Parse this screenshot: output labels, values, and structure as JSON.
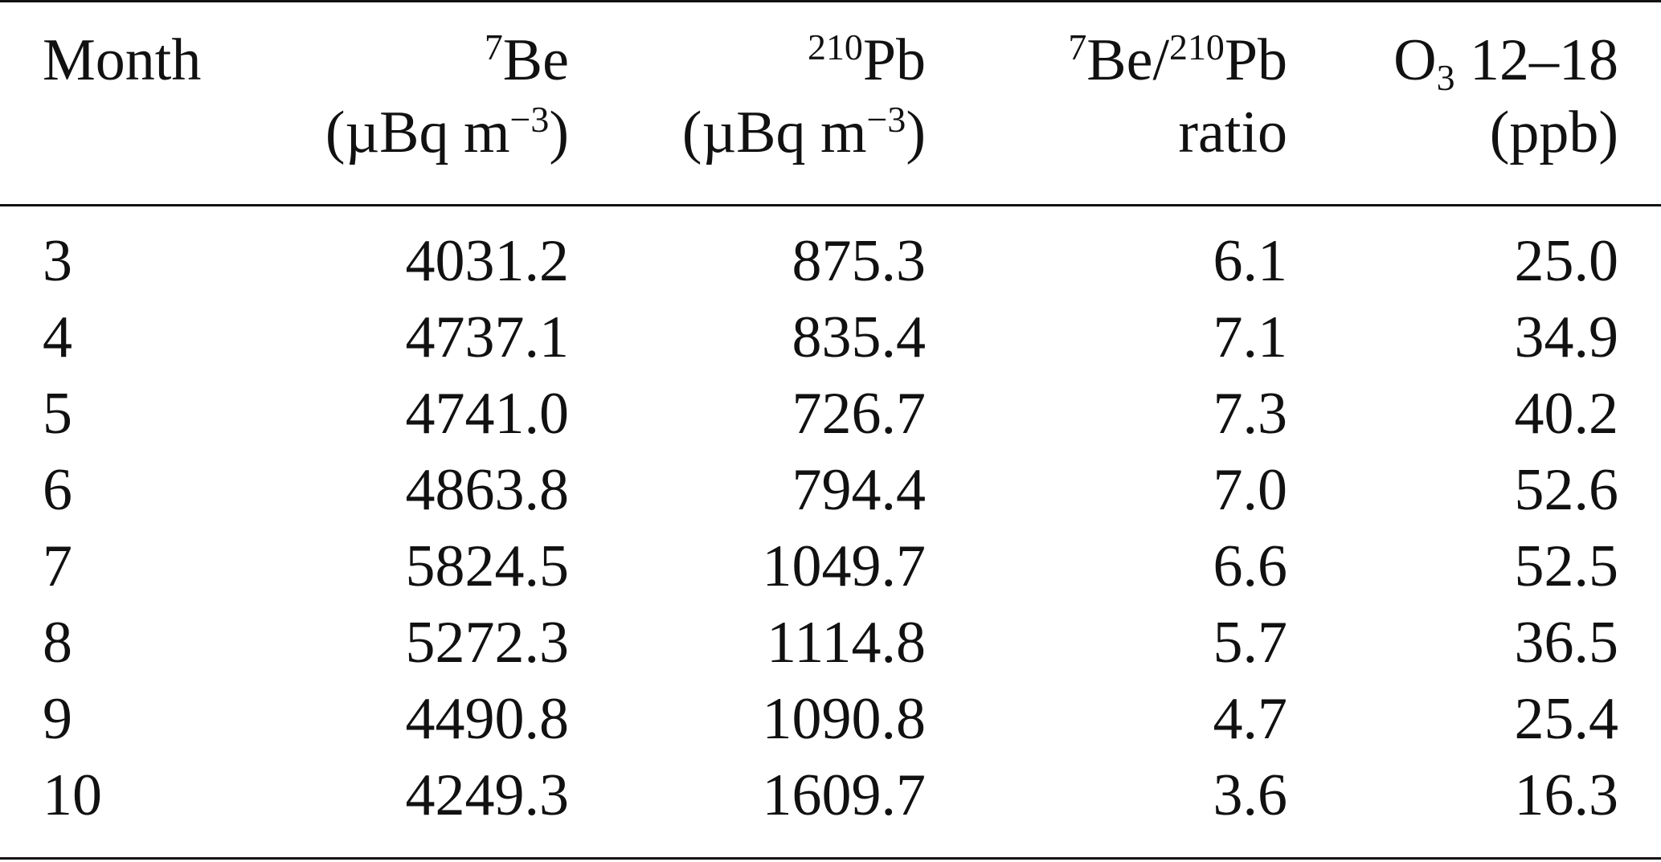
{
  "table": {
    "headers": {
      "month": "Month",
      "be7": {
        "sup": "7",
        "name": "Be",
        "unit_open": "(µBq m",
        "unit_sup": "−3",
        "unit_close": ")"
      },
      "pb210": {
        "sup": "210",
        "name": "Pb",
        "unit_open": "(µBq m",
        "unit_sup": "−3",
        "unit_close": ")"
      },
      "ratio": {
        "sup1": "7",
        "name1": "Be/",
        "sup2": "210",
        "name2": "Pb",
        "line2": "ratio"
      },
      "o3": {
        "name": "O",
        "sub": "3",
        "rest": " 12–18",
        "line2": "(ppb)"
      }
    },
    "rows": [
      {
        "month": "3",
        "be7": "4031.2",
        "pb210": "875.3",
        "ratio": "6.1",
        "o3": "25.0"
      },
      {
        "month": "4",
        "be7": "4737.1",
        "pb210": "835.4",
        "ratio": "7.1",
        "o3": "34.9"
      },
      {
        "month": "5",
        "be7": "4741.0",
        "pb210": "726.7",
        "ratio": "7.3",
        "o3": "40.2"
      },
      {
        "month": "6",
        "be7": "4863.8",
        "pb210": "794.4",
        "ratio": "7.0",
        "o3": "52.6"
      },
      {
        "month": "7",
        "be7": "5824.5",
        "pb210": "1049.7",
        "ratio": "6.6",
        "o3": "52.5"
      },
      {
        "month": "8",
        "be7": "5272.3",
        "pb210": "1114.8",
        "ratio": "5.7",
        "o3": "36.5"
      },
      {
        "month": "9",
        "be7": "4490.8",
        "pb210": "1090.8",
        "ratio": "4.7",
        "o3": "25.4"
      },
      {
        "month": "10",
        "be7": "4249.3",
        "pb210": "1609.7",
        "ratio": "3.6",
        "o3": "16.3"
      }
    ]
  }
}
